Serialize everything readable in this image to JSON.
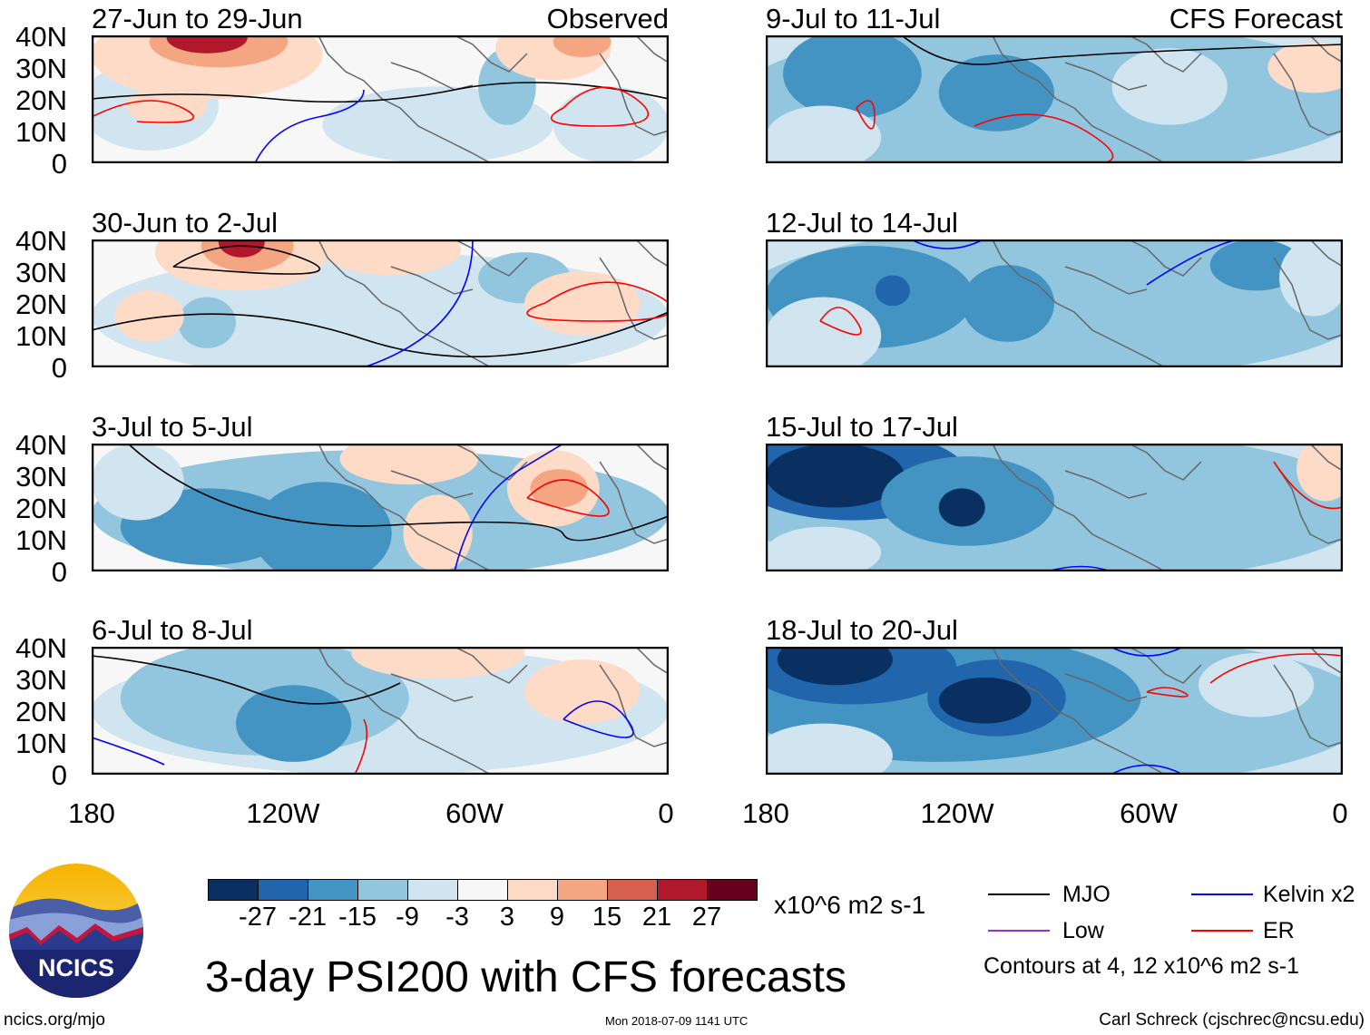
{
  "panels": [
    {
      "title": "27-Jun to 29-Jun",
      "label": "Observed"
    },
    {
      "title": "30-Jun to 2-Jul",
      "label": ""
    },
    {
      "title": "3-Jul to 5-Jul",
      "label": ""
    },
    {
      "title": "6-Jul to 8-Jul",
      "label": ""
    },
    {
      "title": "9-Jul to 11-Jul",
      "label": "CFS Forecast"
    },
    {
      "title": "12-Jul to 14-Jul",
      "label": ""
    },
    {
      "title": "15-Jul to 17-Jul",
      "label": ""
    },
    {
      "title": "18-Jul to 20-Jul",
      "label": ""
    }
  ],
  "y_ticks": [
    "40N",
    "30N",
    "20N",
    "10N",
    "0"
  ],
  "x_ticks": [
    "180",
    "120W",
    "60W",
    "0"
  ],
  "colorbar": {
    "colors": [
      "#0a3062",
      "#2166ac",
      "#4393c3",
      "#92c5de",
      "#d1e5f0",
      "#f7f7f7",
      "#fddbc7",
      "#f4a582",
      "#d6604d",
      "#b2182b",
      "#67001f"
    ],
    "labels": [
      "-27",
      "-21",
      "-15",
      "-9",
      "-3",
      "3",
      "9",
      "15",
      "21",
      "27"
    ],
    "units": "x10^6 m2 s-1"
  },
  "legend": {
    "items": [
      {
        "label": "MJO",
        "color": "#000000"
      },
      {
        "label": "Kelvin x2",
        "color": "#0000ff"
      },
      {
        "label": "Low",
        "color": "#9933cc"
      },
      {
        "label": "ER",
        "color": "#ff0000"
      }
    ],
    "note": "Contours at 4, 12 x10^6 m2 s-1"
  },
  "title": "3-day PSI200 with CFS forecasts",
  "logo_text": "NCICS",
  "footer": {
    "url": "ncics.org/mjo",
    "timestamp": "Mon 2018-07-09 1141 UTC",
    "credit": "Carl Schreck (cjschrec@ncsu.edu)"
  }
}
